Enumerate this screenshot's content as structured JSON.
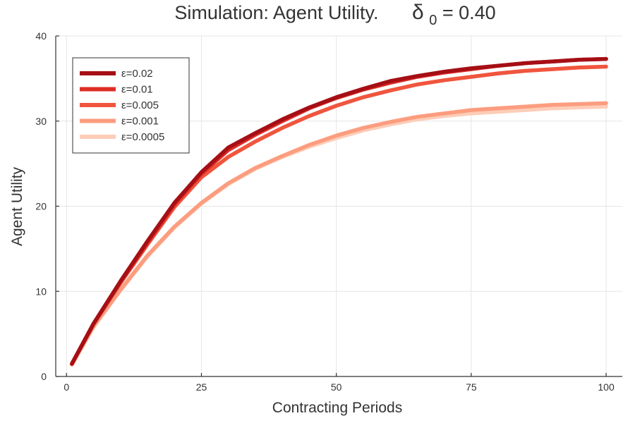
{
  "chart_data": {
    "type": "line",
    "title": {
      "main": "Simulation: Agent Utility.",
      "delta_symbol": "δ",
      "delta_sub": "0",
      "delta_value": " = 0.40"
    },
    "xlabel": "Contracting Periods",
    "ylabel": "Agent Utility",
    "xlim": [
      -2,
      103
    ],
    "ylim": [
      0,
      40
    ],
    "xticks": [
      0,
      25,
      50,
      75,
      100
    ],
    "yticks": [
      0,
      10,
      20,
      30,
      40
    ],
    "grid": true,
    "legend_position": "top-left",
    "x": [
      1,
      5,
      10,
      15,
      20,
      25,
      30,
      35,
      40,
      45,
      50,
      55,
      60,
      65,
      70,
      75,
      80,
      85,
      90,
      95,
      100
    ],
    "series": [
      {
        "name": "ε=0.02",
        "color": "#a50f15",
        "values": [
          1.5,
          6.2,
          11.2,
          15.9,
          20.4,
          24.0,
          26.9,
          28.6,
          30.2,
          31.6,
          32.8,
          33.8,
          34.7,
          35.3,
          35.8,
          36.2,
          36.5,
          36.8,
          37.0,
          37.2,
          37.3
        ]
      },
      {
        "name": "ε=0.01",
        "color": "#de2d26",
        "values": [
          1.5,
          6.2,
          11.1,
          15.7,
          20.2,
          23.8,
          26.6,
          28.4,
          30.0,
          31.5,
          32.7,
          33.7,
          34.5,
          35.2,
          35.7,
          36.1,
          36.5,
          36.8,
          37.0,
          37.2,
          37.3
        ]
      },
      {
        "name": "ε=0.005",
        "color": "#f0553d",
        "values": [
          1.5,
          6.1,
          11.0,
          15.5,
          19.9,
          23.4,
          25.8,
          27.6,
          29.2,
          30.6,
          31.8,
          32.8,
          33.6,
          34.3,
          34.8,
          35.2,
          35.6,
          35.9,
          36.1,
          36.3,
          36.4
        ]
      },
      {
        "name": "ε=0.001",
        "color": "#fc9d7f",
        "values": [
          1.4,
          5.9,
          10.2,
          14.2,
          17.6,
          20.4,
          22.7,
          24.5,
          25.9,
          27.2,
          28.3,
          29.2,
          29.9,
          30.5,
          30.9,
          31.3,
          31.5,
          31.7,
          31.9,
          32.0,
          32.1
        ]
      },
      {
        "name": "ε=0.0005",
        "color": "#fdcdb8",
        "values": [
          1.4,
          5.8,
          10.1,
          14.1,
          17.5,
          20.3,
          22.6,
          24.4,
          25.8,
          27.0,
          28.0,
          28.9,
          29.6,
          30.2,
          30.6,
          30.9,
          31.1,
          31.3,
          31.5,
          31.6,
          31.7
        ]
      }
    ]
  }
}
